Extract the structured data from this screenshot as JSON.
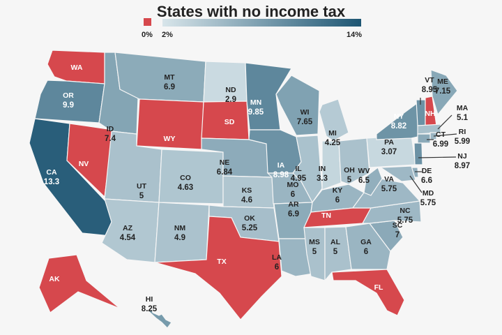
{
  "title": "States with no income tax",
  "legend": {
    "zero_label": "0%",
    "min_label": "2%",
    "max_label": "14%",
    "zero_color": "#d6484d",
    "min_color": "#d8e5ea",
    "max_color": "#1e5673"
  },
  "states": [
    {
      "abbr": "WA",
      "rate": "0"
    },
    {
      "abbr": "OR",
      "rate": "9.9"
    },
    {
      "abbr": "CA",
      "rate": "13.3"
    },
    {
      "abbr": "NV",
      "rate": "0"
    },
    {
      "abbr": "ID",
      "rate": "7.4"
    },
    {
      "abbr": "MT",
      "rate": "6.9"
    },
    {
      "abbr": "WY",
      "rate": "0"
    },
    {
      "abbr": "UT",
      "rate": "5"
    },
    {
      "abbr": "CO",
      "rate": "4.63"
    },
    {
      "abbr": "AZ",
      "rate": "4.54"
    },
    {
      "abbr": "NM",
      "rate": "4.9"
    },
    {
      "abbr": "ND",
      "rate": "2.9"
    },
    {
      "abbr": "SD",
      "rate": "0"
    },
    {
      "abbr": "NE",
      "rate": "6.84"
    },
    {
      "abbr": "KS",
      "rate": "4.6"
    },
    {
      "abbr": "OK",
      "rate": "5.25"
    },
    {
      "abbr": "TX",
      "rate": "0"
    },
    {
      "abbr": "MN",
      "rate": "9.85"
    },
    {
      "abbr": "IA",
      "rate": "8.98"
    },
    {
      "abbr": "MO",
      "rate": "6"
    },
    {
      "abbr": "AR",
      "rate": "6.9"
    },
    {
      "abbr": "LA",
      "rate": "6"
    },
    {
      "abbr": "WI",
      "rate": "7.65"
    },
    {
      "abbr": "MI",
      "rate": "4.25"
    },
    {
      "abbr": "IL",
      "rate": "4.95"
    },
    {
      "abbr": "IN",
      "rate": "3.3"
    },
    {
      "abbr": "OH",
      "rate": "5"
    },
    {
      "abbr": "KY",
      "rate": "6"
    },
    {
      "abbr": "TN",
      "rate": "0"
    },
    {
      "abbr": "MS",
      "rate": "5"
    },
    {
      "abbr": "AL",
      "rate": "5"
    },
    {
      "abbr": "GA",
      "rate": "6"
    },
    {
      "abbr": "FL",
      "rate": "0"
    },
    {
      "abbr": "SC",
      "rate": "7"
    },
    {
      "abbr": "NC",
      "rate": "5.75"
    },
    {
      "abbr": "VA",
      "rate": "5.75"
    },
    {
      "abbr": "WV",
      "rate": "6.5"
    },
    {
      "abbr": "PA",
      "rate": "3.07"
    },
    {
      "abbr": "NY",
      "rate": "8.82"
    },
    {
      "abbr": "VT",
      "rate": "8.95"
    },
    {
      "abbr": "NH",
      "rate": "0"
    },
    {
      "abbr": "ME",
      "rate": "7.15"
    },
    {
      "abbr": "MA",
      "rate": "5.1"
    },
    {
      "abbr": "RI",
      "rate": "5.99"
    },
    {
      "abbr": "CT",
      "rate": "6.99"
    },
    {
      "abbr": "NJ",
      "rate": "8.97"
    },
    {
      "abbr": "DE",
      "rate": "6.6"
    },
    {
      "abbr": "MD",
      "rate": "5.75"
    },
    {
      "abbr": "AK",
      "rate": "0"
    },
    {
      "abbr": "HI",
      "rate": "8.25"
    }
  ]
}
